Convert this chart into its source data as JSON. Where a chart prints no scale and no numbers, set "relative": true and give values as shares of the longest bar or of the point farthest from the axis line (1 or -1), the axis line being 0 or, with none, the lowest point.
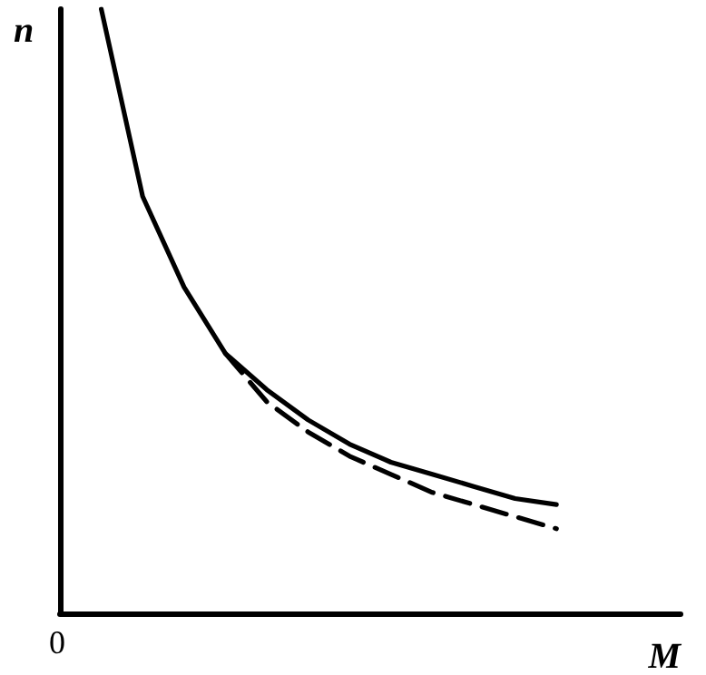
{
  "chart_data": {
    "type": "line",
    "relative": true,
    "xlabel": "M",
    "ylabel": "n",
    "annotations": [
      "0"
    ],
    "categories": [
      null,
      null,
      null,
      null,
      null,
      null,
      null,
      null,
      null,
      null,
      null,
      null,
      null,
      null,
      null,
      null
    ],
    "series": [
      {
        "color": "#000000",
        "line_style": "solid",
        "values": [
          null,
          1,
          0.69,
          0.54,
          0.43,
          0.37,
          0.32,
          0.28,
          0.25,
          0.23,
          0.21,
          0.19,
          0.18,
          null,
          null,
          null
        ]
      },
      {
        "color": "#000000",
        "line_style": "dashed",
        "values": [
          null,
          null,
          null,
          null,
          0.43,
          0.35,
          0.3,
          0.26,
          0.23,
          0.2,
          0.18,
          0.16,
          0.14,
          null,
          null,
          null
        ]
      }
    ],
    "grid": false,
    "marker": "none"
  }
}
